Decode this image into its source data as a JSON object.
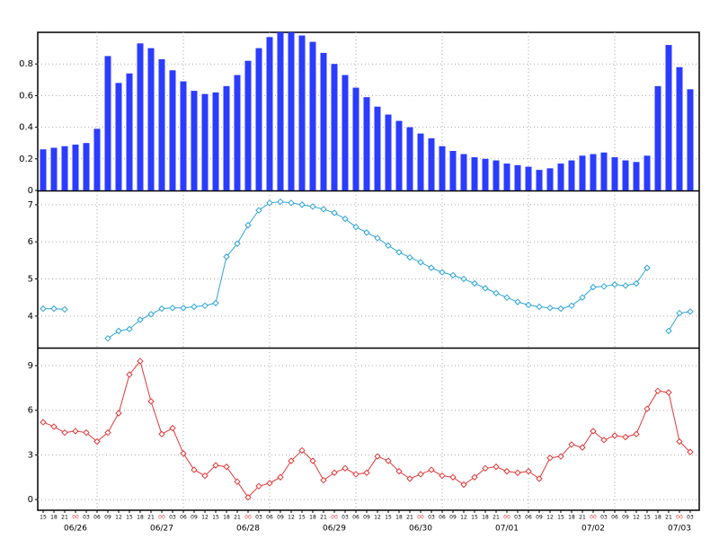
{
  "chart_data": [
    {
      "type": "bar",
      "color": "#2b3cff",
      "ylim": [
        0,
        1
      ],
      "yticks": [
        0,
        0.2,
        0.4,
        0.6,
        0.8
      ],
      "grid": true,
      "values": [
        0.26,
        0.27,
        0.28,
        0.29,
        0.3,
        0.39,
        0.85,
        0.68,
        0.74,
        0.93,
        0.9,
        0.83,
        0.76,
        0.69,
        0.63,
        0.61,
        0.62,
        0.66,
        0.73,
        0.82,
        0.9,
        0.97,
        1.0,
        1.0,
        0.98,
        0.94,
        0.87,
        0.8,
        0.73,
        0.65,
        0.59,
        0.53,
        0.48,
        0.44,
        0.4,
        0.36,
        0.33,
        0.28,
        0.25,
        0.23,
        0.21,
        0.2,
        0.19,
        0.17,
        0.16,
        0.15,
        0.13,
        0.14,
        0.17,
        0.19,
        0.22,
        0.23,
        0.24,
        0.21,
        0.19,
        0.18,
        0.22,
        0.66,
        0.92,
        0.78,
        0.64
      ]
    },
    {
      "type": "line",
      "color": "#2fa4d8",
      "ylim": [
        3.15,
        7.36
      ],
      "yticks": [
        4,
        5,
        6,
        7
      ],
      "grid": true,
      "values": [
        4.2,
        4.2,
        4.18,
        null,
        null,
        null,
        3.4,
        3.6,
        3.65,
        3.9,
        4.05,
        4.2,
        4.22,
        4.22,
        4.25,
        4.28,
        4.35,
        5.6,
        5.95,
        6.45,
        6.85,
        7.05,
        7.08,
        7.05,
        7.0,
        6.95,
        6.88,
        6.78,
        6.62,
        6.4,
        6.25,
        6.1,
        5.9,
        5.72,
        5.58,
        5.45,
        5.3,
        5.18,
        5.1,
        5.0,
        4.88,
        4.75,
        4.62,
        4.5,
        4.38,
        4.3,
        4.25,
        4.22,
        4.2,
        4.28,
        4.5,
        4.78,
        4.8,
        4.85,
        4.82,
        4.88,
        5.3,
        null,
        3.6,
        4.08,
        4.12
      ]
    },
    {
      "type": "line",
      "color": "#e03a3a",
      "ylim": [
        -0.72,
        10.15
      ],
      "yticks": [
        0,
        3,
        6,
        9
      ],
      "grid": true,
      "values": [
        5.2,
        4.9,
        4.5,
        4.6,
        4.5,
        3.9,
        4.5,
        5.8,
        8.4,
        9.3,
        6.6,
        4.4,
        4.8,
        3.1,
        2.0,
        1.6,
        2.3,
        2.2,
        1.2,
        0.15,
        0.9,
        1.1,
        1.5,
        2.6,
        3.3,
        2.6,
        1.3,
        1.8,
        2.1,
        1.7,
        1.8,
        2.9,
        2.6,
        1.9,
        1.4,
        1.7,
        2.0,
        1.6,
        1.5,
        1.0,
        1.5,
        2.1,
        2.2,
        1.9,
        1.8,
        1.9,
        1.4,
        2.8,
        2.9,
        3.7,
        3.5,
        4.6,
        4.0,
        4.3,
        4.2,
        4.4,
        6.1,
        7.3,
        7.2,
        3.9,
        3.2
      ],
      "categories": [
        "15",
        "18",
        "21",
        "00",
        "03",
        "06",
        "09",
        "12",
        "15",
        "18",
        "21",
        "00",
        "03",
        "06",
        "09",
        "12",
        "15",
        "18",
        "21",
        "00",
        "03",
        "06",
        "09",
        "12",
        "15",
        "18",
        "21",
        "00",
        "03",
        "06",
        "09",
        "12",
        "15",
        "18",
        "21",
        "00",
        "03",
        "06",
        "09",
        "12",
        "15",
        "18",
        "21",
        "00",
        "03",
        "06",
        "09",
        "12",
        "15",
        "18",
        "21",
        "00",
        "03",
        "06",
        "09",
        "12",
        "15",
        "18",
        "21",
        "00",
        "03"
      ],
      "midnight_color": "#e03a3a",
      "day_labels": [
        "06/26",
        "06/27",
        "06/28",
        "06/29",
        "06/30",
        "07/01",
        "07/02",
        "07/03"
      ]
    }
  ]
}
